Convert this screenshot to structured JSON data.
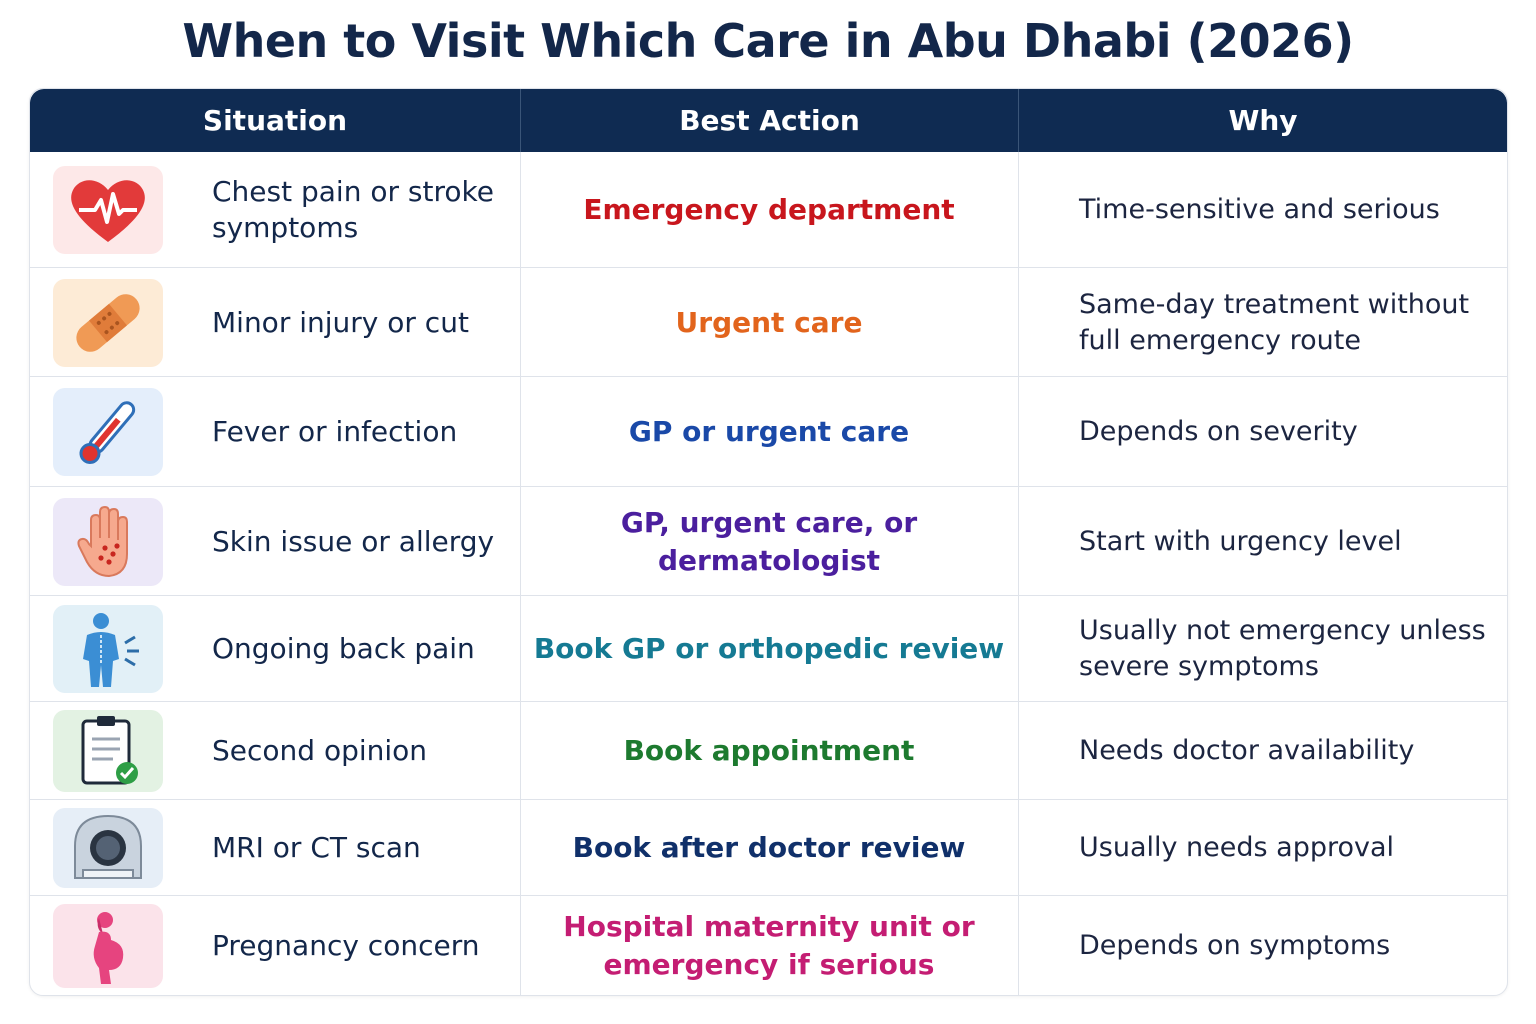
{
  "title": "When to Visit Which Care in Abu Dhabi (2026)",
  "headers": [
    "Situation",
    "Best Action",
    "Why"
  ],
  "rows": [
    {
      "icon": "heart-pulse-icon",
      "situation": "Chest pain or stroke symptoms",
      "action": "Emergency department",
      "why": "Time-sensitive and serious",
      "action_color": "#c8161d",
      "icon_bg": "#fde8e8"
    },
    {
      "icon": "bandage-icon",
      "situation": "Minor injury or cut",
      "action": "Urgent care",
      "why": "Same-day treatment without full emergency route",
      "action_color": "#e2641c",
      "icon_bg": "#fdebd6"
    },
    {
      "icon": "thermometer-icon",
      "situation": "Fever or infection",
      "action": "GP or urgent care",
      "why": "Depends on severity",
      "action_color": "#1a49a8",
      "icon_bg": "#e4eefb"
    },
    {
      "icon": "hand-rash-icon",
      "situation": "Skin issue or allergy",
      "action": "GP, urgent care, or dermatologist",
      "why": "Start with urgency level",
      "action_color": "#4b1f9e",
      "icon_bg": "#ece8f8"
    },
    {
      "icon": "back-pain-icon",
      "situation": "Ongoing back pain",
      "action": "Book GP or orthopedic review",
      "why": "Usually not emergency unless severe symptoms",
      "action_color": "#157a93",
      "icon_bg": "#e2f0f7"
    },
    {
      "icon": "clipboard-check-icon",
      "situation": "Second opinion",
      "action": "Book appointment",
      "why": "Needs doctor availability",
      "action_color": "#1d7a2f",
      "icon_bg": "#e3f2e3"
    },
    {
      "icon": "mri-scanner-icon",
      "situation": "MRI or CT scan",
      "action": "Book after doctor review",
      "why": "Usually needs approval",
      "action_color": "#10306a",
      "icon_bg": "#e6eef7"
    },
    {
      "icon": "pregnancy-icon",
      "situation": "Pregnancy concern",
      "action": "Hospital maternity unit or emergency if serious",
      "why": "Depends on symptoms",
      "action_color": "#c41d73",
      "icon_bg": "#fbe3ea"
    }
  ]
}
